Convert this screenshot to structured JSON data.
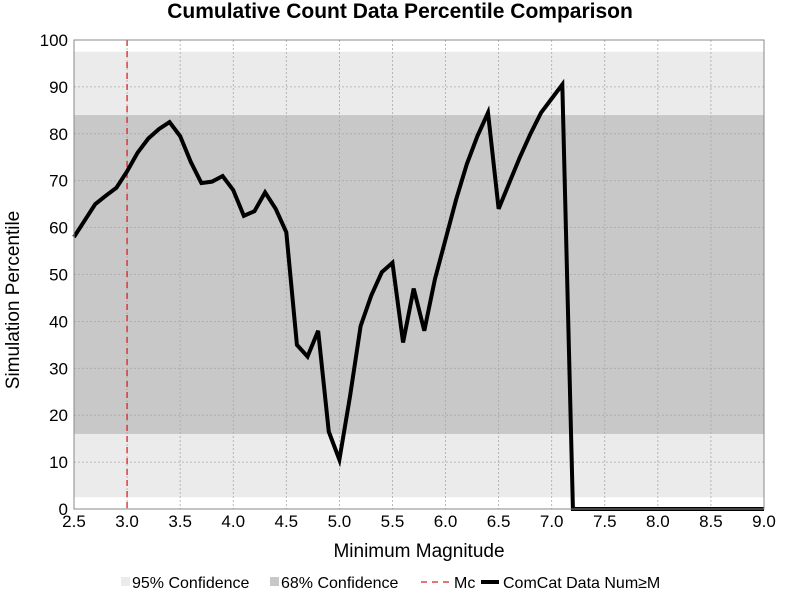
{
  "chart_data": {
    "type": "line",
    "title": "Cumulative Count Data Percentile Comparison",
    "xlabel": "Minimum Magnitude",
    "ylabel": "Simulation Percentile",
    "xlim": [
      2.5,
      9.0
    ],
    "ylim": [
      0,
      100
    ],
    "x_ticks": [
      "2.5",
      "3.0",
      "3.5",
      "4.0",
      "4.5",
      "5.0",
      "5.5",
      "6.0",
      "6.5",
      "7.0",
      "7.5",
      "8.0",
      "8.5",
      "9.0"
    ],
    "y_ticks": [
      "0",
      "10",
      "20",
      "30",
      "40",
      "50",
      "60",
      "70",
      "80",
      "90",
      "100"
    ],
    "grid": true,
    "legend_position": "bottom",
    "bands": [
      {
        "name": "95% Confidence",
        "lower": 2.5,
        "upper": 97.5,
        "color": "#ebebeb"
      },
      {
        "name": "68% Confidence",
        "lower": 16,
        "upper": 84,
        "color": "#c8c8c8"
      }
    ],
    "mc": {
      "name": "Mc",
      "x": 3.0,
      "color": "#dd2222"
    },
    "series": [
      {
        "name": "ComCat Data Num≥M",
        "color": "#000000",
        "x": [
          2.5,
          2.6,
          2.7,
          2.8,
          2.9,
          3.0,
          3.1,
          3.2,
          3.3,
          3.4,
          3.5,
          3.6,
          3.7,
          3.8,
          3.9,
          4.0,
          4.1,
          4.2,
          4.3,
          4.4,
          4.5,
          4.6,
          4.7,
          4.8,
          4.9,
          5.0,
          5.1,
          5.2,
          5.3,
          5.4,
          5.5,
          5.6,
          5.7,
          5.8,
          5.9,
          6.0,
          6.1,
          6.2,
          6.3,
          6.4,
          6.5,
          6.6,
          6.7,
          6.8,
          6.9,
          7.0,
          7.1,
          7.2,
          7.3,
          7.4,
          7.5,
          7.6,
          7.7,
          7.8,
          7.9,
          8.0,
          8.1,
          8.2,
          8.3,
          8.4,
          8.5,
          8.6,
          8.7,
          8.8,
          8.9,
          9.0
        ],
        "y": [
          58,
          61.5,
          65,
          66.8,
          68.5,
          72,
          76,
          79,
          81,
          82.5,
          79.5,
          74,
          69.5,
          69.8,
          71,
          68,
          62.5,
          63.5,
          67.5,
          64,
          59,
          35,
          32.5,
          38,
          16.5,
          10.5,
          24,
          39,
          45.5,
          50.5,
          52.5,
          35.5,
          47,
          38,
          49,
          57.5,
          66,
          73.5,
          79.5,
          84.5,
          64,
          69.5,
          75,
          80,
          84.5,
          87.5,
          90.5,
          0,
          0,
          0,
          0,
          0,
          0,
          0,
          0,
          0,
          0,
          0,
          0,
          0,
          0,
          0,
          0,
          0,
          0,
          0
        ]
      }
    ]
  },
  "legend": {
    "items": [
      {
        "label": "95% Confidence",
        "color": "#ebebeb"
      },
      {
        "label": "68% Confidence",
        "color": "#c8c8c8"
      },
      {
        "label": "Mc",
        "color": "#dd2222"
      },
      {
        "label": "ComCat Data Num≥M",
        "color": "#000000"
      }
    ]
  }
}
